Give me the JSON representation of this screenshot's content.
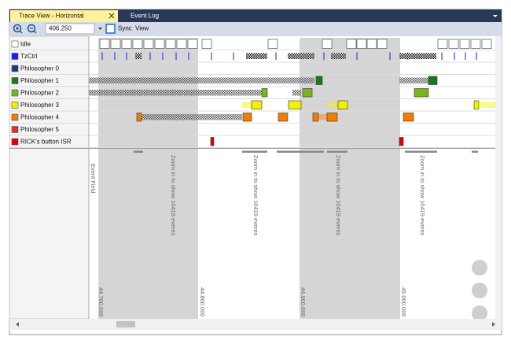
{
  "tabs": [
    "Trace View - Horizontal",
    "Event Log"
  ],
  "toolbar": {
    "zoom": "406.250",
    "sync": "Sync",
    "view": "View"
  },
  "rows": [
    "Idle",
    "TzCtrl",
    "Philosopher 0",
    "Philosopher 1",
    "Philosopher 2",
    "Philosopher 3",
    "Philosopher 4",
    "Philosopher 5",
    "RICK's button ISR"
  ],
  "side_label": "Event Field",
  "zoom_notes": [
    "Zoom in to show 10419 events",
    "Zoom in to show 10419 events",
    "Zoom in to show 10419 events",
    "Zoom in to show 10419 events"
  ],
  "time_labels": [
    "44.700.000",
    "44.800.000",
    "44.900.000",
    "45.000.000"
  ]
}
